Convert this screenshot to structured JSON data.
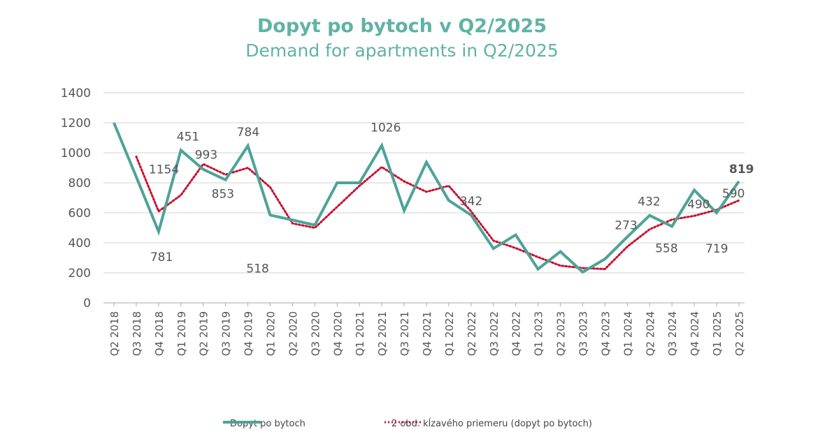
{
  "title": "Dopyt po bytoch v Q2/2025",
  "subtitle": "Demand for apartments in Q2/2025",
  "colors": {
    "title": "#5fb3a4",
    "series": "#4ea397",
    "trend": "#c8102e",
    "grid": "#d0d0d0",
    "axis": "#aaaaaa"
  },
  "legend": {
    "series": "Dopyt po bytoch",
    "trend": "2 obd. kĺzavého priemeru (dopyt po bytoch)"
  },
  "chart_data": {
    "type": "line",
    "categories": [
      "Q2 2018",
      "Q3 2018",
      "Q4 2018",
      "Q1 2019",
      "Q2 2019",
      "Q3 2019",
      "Q4 2019",
      "Q1 2020",
      "Q2 2020",
      "Q3 2020",
      "Q4 2020",
      "Q1 2021",
      "Q2 2021",
      "Q3 2021",
      "Q4 2021",
      "Q1 2022",
      "Q2 2022",
      "Q3 2022",
      "Q4 2022",
      "Q1 2023",
      "Q2 2023",
      "Q3 2023",
      "Q4 2023",
      "Q1 2024",
      "Q2 2024",
      "Q3 2024",
      "Q4 2024",
      "Q1 2025",
      "Q2 2025"
    ],
    "series": [
      {
        "name": "Dopyt po bytoch",
        "values": [
          1200,
          840,
          475,
          1017,
          890,
          820,
          1047,
          585,
          552,
          518,
          800,
          800,
          1049,
          615,
          937,
          683,
          585,
          362,
          453,
          225,
          342,
          205,
          292,
          440,
          583,
          510,
          752,
          600,
          810
        ]
      },
      {
        "name": "2 obd. kĺzavého priemeru (dopyt po bytoch)",
        "values": [
          null,
          975,
          610,
          718,
          925,
          855,
          900,
          770,
          530,
          500,
          640,
          780,
          905,
          810,
          740,
          780,
          610,
          415,
          365,
          305,
          248,
          232,
          225,
          375,
          490,
          555,
          580,
          620,
          683
        ]
      }
    ],
    "data_labels": [
      {
        "text": "1154",
        "index": 1
      },
      {
        "text": "781",
        "index": 2
      },
      {
        "text": "451",
        "index": 3
      },
      {
        "text": "993",
        "index": 4
      },
      {
        "text": "853",
        "index": 5
      },
      {
        "text": "784",
        "index": 6
      },
      {
        "text": "518",
        "index": 8
      },
      {
        "text": "1026",
        "index": 12
      },
      {
        "text": "342",
        "index": 16
      },
      {
        "text": "273",
        "index": 23
      },
      {
        "text": "432",
        "index": 24
      },
      {
        "text": "558",
        "index": 25
      },
      {
        "text": "490",
        "index": 26
      },
      {
        "text": "719",
        "index": 27
      },
      {
        "text": "590",
        "index": 28
      },
      {
        "text": "819",
        "index": 28
      }
    ],
    "yticks": [
      "0",
      "200",
      "400",
      "600",
      "800",
      "1000",
      "1200",
      "1400"
    ],
    "ylim": [
      0,
      1400
    ],
    "grid": true,
    "legend_position": "bottom"
  }
}
